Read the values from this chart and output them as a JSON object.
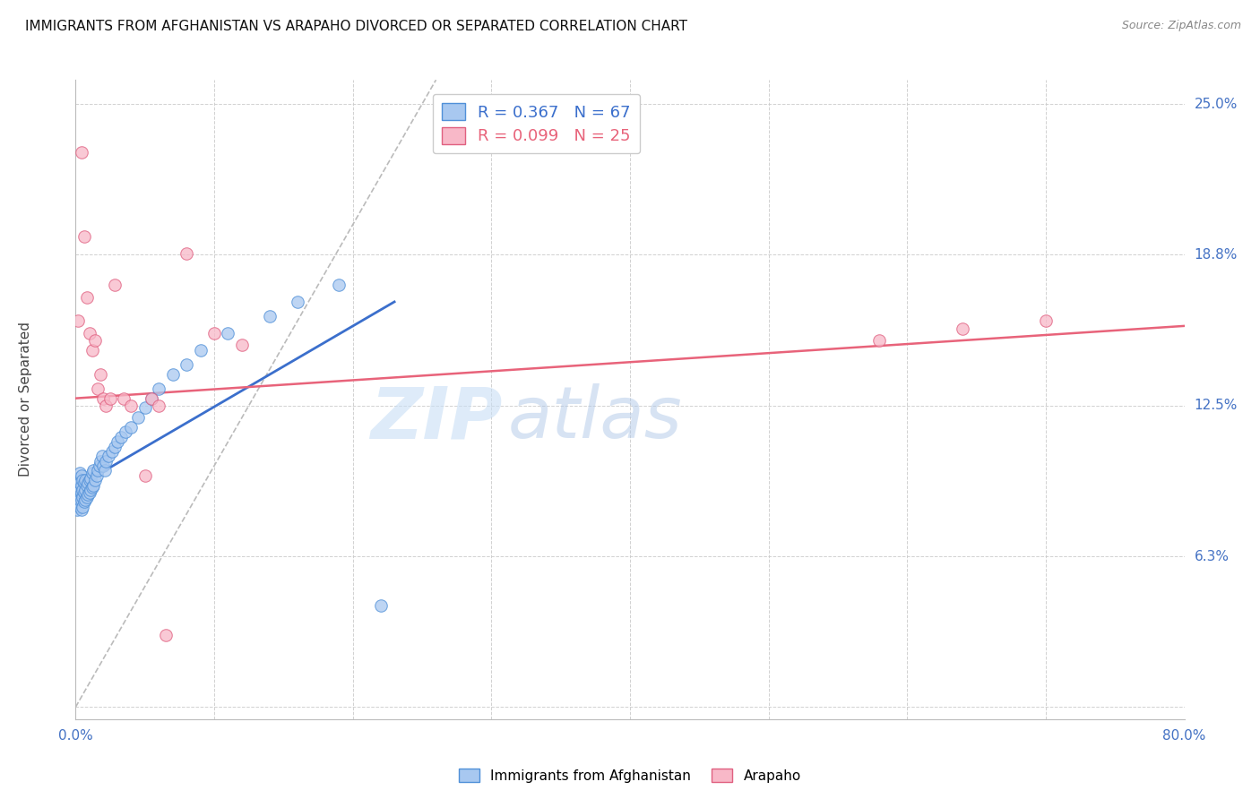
{
  "title": "IMMIGRANTS FROM AFGHANISTAN VS ARAPAHO DIVORCED OR SEPARATED CORRELATION CHART",
  "source_text": "Source: ZipAtlas.com",
  "ylabel": "Divorced or Separated",
  "xmin": 0.0,
  "xmax": 0.8,
  "ymin": -0.005,
  "ymax": 0.26,
  "yticks": [
    0.0,
    0.0625,
    0.125,
    0.1875,
    0.25
  ],
  "ytick_labels": [
    "",
    "6.3%",
    "12.5%",
    "18.8%",
    "25.0%"
  ],
  "xticks": [
    0.0,
    0.1,
    0.2,
    0.3,
    0.4,
    0.5,
    0.6,
    0.7,
    0.8
  ],
  "xtick_labels": [
    "0.0%",
    "",
    "",
    "",
    "",
    "",
    "",
    "",
    "80.0%"
  ],
  "blue_scatter_x": [
    0.001,
    0.001,
    0.001,
    0.002,
    0.002,
    0.002,
    0.002,
    0.003,
    0.003,
    0.003,
    0.003,
    0.003,
    0.004,
    0.004,
    0.004,
    0.004,
    0.004,
    0.005,
    0.005,
    0.005,
    0.005,
    0.006,
    0.006,
    0.006,
    0.007,
    0.007,
    0.007,
    0.008,
    0.008,
    0.009,
    0.009,
    0.01,
    0.01,
    0.011,
    0.011,
    0.012,
    0.012,
    0.013,
    0.013,
    0.014,
    0.015,
    0.016,
    0.017,
    0.018,
    0.019,
    0.02,
    0.021,
    0.022,
    0.024,
    0.026,
    0.028,
    0.03,
    0.033,
    0.036,
    0.04,
    0.045,
    0.05,
    0.055,
    0.06,
    0.07,
    0.08,
    0.09,
    0.11,
    0.14,
    0.16,
    0.19,
    0.22
  ],
  "blue_scatter_y": [
    0.082,
    0.088,
    0.092,
    0.085,
    0.088,
    0.092,
    0.095,
    0.083,
    0.086,
    0.09,
    0.093,
    0.097,
    0.082,
    0.086,
    0.089,
    0.092,
    0.096,
    0.083,
    0.087,
    0.09,
    0.094,
    0.085,
    0.089,
    0.093,
    0.086,
    0.09,
    0.094,
    0.087,
    0.092,
    0.088,
    0.093,
    0.089,
    0.094,
    0.09,
    0.095,
    0.091,
    0.097,
    0.092,
    0.098,
    0.094,
    0.096,
    0.098,
    0.1,
    0.102,
    0.104,
    0.1,
    0.098,
    0.102,
    0.104,
    0.106,
    0.108,
    0.11,
    0.112,
    0.114,
    0.116,
    0.12,
    0.124,
    0.128,
    0.132,
    0.138,
    0.142,
    0.148,
    0.155,
    0.162,
    0.168,
    0.175,
    0.042
  ],
  "pink_scatter_x": [
    0.002,
    0.004,
    0.006,
    0.008,
    0.01,
    0.012,
    0.014,
    0.016,
    0.018,
    0.02,
    0.022,
    0.025,
    0.028,
    0.035,
    0.04,
    0.05,
    0.055,
    0.06,
    0.065,
    0.08,
    0.1,
    0.12,
    0.58,
    0.64,
    0.7
  ],
  "pink_scatter_y": [
    0.16,
    0.23,
    0.195,
    0.17,
    0.155,
    0.148,
    0.152,
    0.132,
    0.138,
    0.128,
    0.125,
    0.128,
    0.175,
    0.128,
    0.125,
    0.096,
    0.128,
    0.125,
    0.03,
    0.188,
    0.155,
    0.15,
    0.152,
    0.157,
    0.16
  ],
  "blue_line_x": [
    0.0,
    0.23
  ],
  "blue_line_y": [
    0.091,
    0.168
  ],
  "pink_line_x": [
    0.0,
    0.8
  ],
  "pink_line_y": [
    0.128,
    0.158
  ],
  "diagonal_line_x": [
    0.0,
    0.26
  ],
  "diagonal_line_y": [
    0.0,
    0.26
  ],
  "R_blue": "0.367",
  "N_blue": "67",
  "R_pink": "0.099",
  "N_pink": "25",
  "blue_fill_color": "#A8C8F0",
  "pink_fill_color": "#F8B8C8",
  "blue_edge_color": "#5090D8",
  "pink_edge_color": "#E06080",
  "blue_line_color": "#3B6FCC",
  "pink_line_color": "#E8637A",
  "diagonal_color": "#BBBBBB",
  "legend_blue_label": "Immigrants from Afghanistan",
  "legend_pink_label": "Arapaho",
  "watermark_zip": "ZIP",
  "watermark_atlas": "atlas",
  "background_color": "#FFFFFF",
  "grid_color": "#CCCCCC",
  "title_fontsize": 11,
  "axis_tick_color": "#4472C4",
  "axis_label_color": "#444444"
}
